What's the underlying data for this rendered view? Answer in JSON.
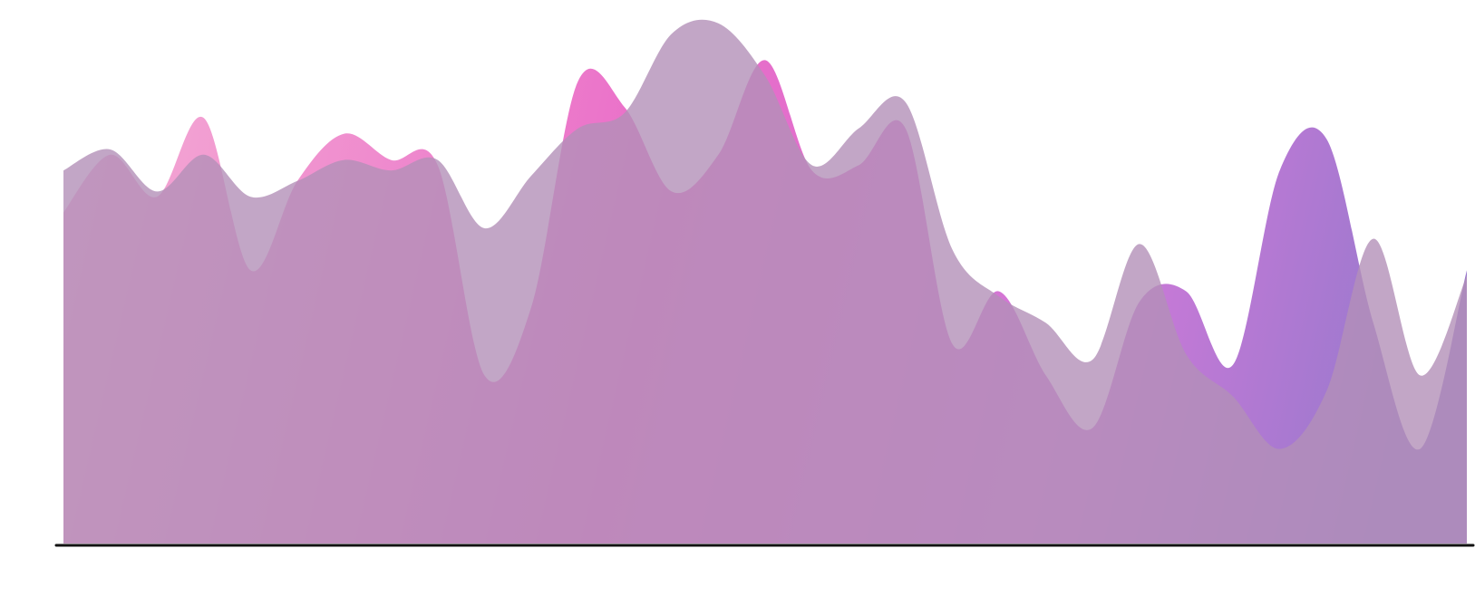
{
  "chart_data": {
    "type": "area",
    "title": "",
    "xlabel": "",
    "ylabel": "",
    "grid": false,
    "legend": "none",
    "x": [
      0,
      1,
      2,
      3,
      4,
      5,
      6,
      7,
      8,
      9,
      10,
      11,
      12,
      13,
      14,
      15,
      16,
      17,
      18,
      19,
      20,
      21,
      22,
      23,
      24,
      25,
      26,
      27,
      28,
      29,
      30
    ],
    "xlim": [
      0,
      30
    ],
    "ylim": [
      0,
      100
    ],
    "series": [
      {
        "values": [
          63,
          74,
          66,
          81,
          52,
          69,
          78,
          73,
          72,
          32,
          45,
          88,
          83,
          67,
          74,
          92,
          71,
          72,
          79,
          38,
          48,
          32,
          22,
          46,
          48,
          34,
          71,
          77,
          42,
          18,
          52
        ],
        "fill": "#e75cc2",
        "fill_end": "#8d6bc8",
        "opacity": 0.9
      },
      {
        "values": [
          71,
          75,
          67,
          74,
          66,
          69,
          73,
          71,
          73,
          60,
          70,
          79,
          82,
          97,
          99,
          89,
          72,
          79,
          84,
          56,
          47,
          42,
          35,
          57,
          36,
          28,
          18,
          29,
          58,
          32,
          51
        ],
        "fill": "#b390b8",
        "opacity": 0.8
      }
    ]
  }
}
